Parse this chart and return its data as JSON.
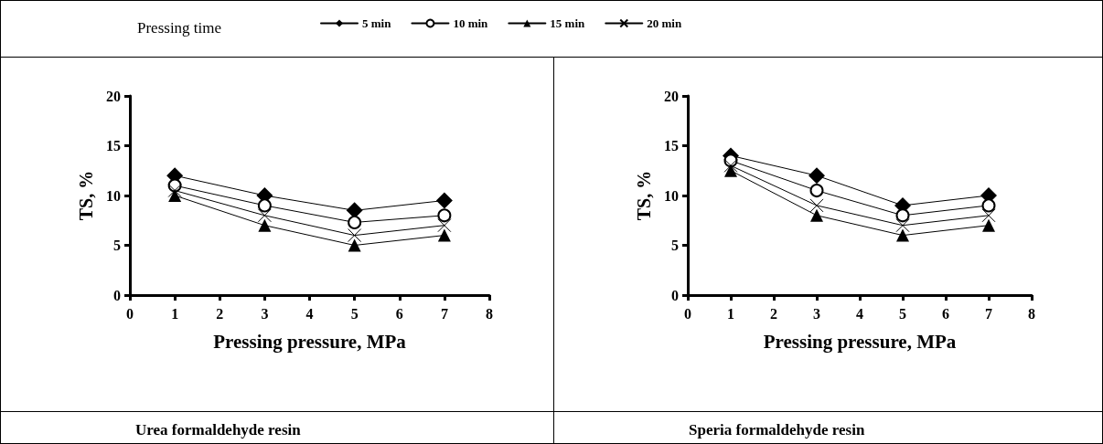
{
  "chart_data": [
    {
      "type": "line",
      "xlabel": "Pressing pressure, MPa",
      "ylabel": "TS, %",
      "legend": "top",
      "legend_title": "Pressing time",
      "x": [
        1,
        3,
        5,
        7
      ],
      "xlim": [
        0,
        8
      ],
      "xticks": [
        0,
        1,
        2,
        3,
        4,
        5,
        6,
        7,
        8
      ],
      "ylim": [
        0,
        20
      ],
      "yticks": [
        0,
        5,
        10,
        15,
        20
      ],
      "line_style": "solid",
      "annotations": [
        "Urea formaldehyde resin"
      ],
      "series": [
        {
          "name": "5 min",
          "color": "#000000",
          "marker": "diamond",
          "values": [
            12,
            10,
            8.5,
            9.5
          ]
        },
        {
          "name": "10 min",
          "color": "#000000",
          "marker": "circle",
          "values": [
            11,
            9,
            7.3,
            8
          ]
        },
        {
          "name": "15 min",
          "color": "#000000",
          "marker": "triangle",
          "values": [
            10,
            7,
            5,
            6
          ]
        },
        {
          "name": "20 min",
          "color": "#000000",
          "marker": "cross",
          "values": [
            10.5,
            8,
            6,
            7
          ]
        }
      ]
    },
    {
      "type": "line",
      "xlabel": "Pressing pressure, MPa",
      "ylabel": "TS, %",
      "x": [
        1,
        3,
        5,
        7
      ],
      "xlim": [
        0,
        8
      ],
      "xticks": [
        0,
        1,
        2,
        3,
        4,
        5,
        6,
        7,
        8
      ],
      "ylim": [
        0,
        20
      ],
      "yticks": [
        0,
        5,
        10,
        15,
        20
      ],
      "line_style": "solid",
      "annotations": [
        "Speria formaldehyde resin"
      ],
      "series": [
        {
          "color": "#000000",
          "marker": "diamond",
          "values": [
            14,
            12,
            9,
            10
          ]
        },
        {
          "color": "#000000",
          "marker": "circle",
          "values": [
            13.5,
            10.5,
            8,
            9
          ]
        },
        {
          "color": "#000000",
          "marker": "triangle",
          "values": [
            12.5,
            8,
            6,
            7
          ]
        },
        {
          "color": "#000000",
          "marker": "cross",
          "values": [
            13,
            9,
            7,
            8
          ]
        }
      ]
    }
  ]
}
